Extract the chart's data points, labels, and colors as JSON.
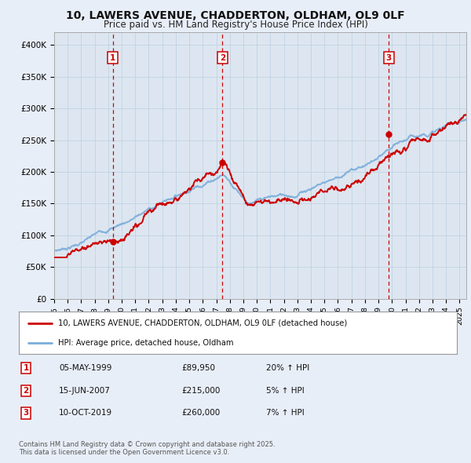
{
  "title": "10, LAWERS AVENUE, CHADDERTON, OLDHAM, OL9 0LF",
  "subtitle": "Price paid vs. HM Land Registry's House Price Index (HPI)",
  "title_fontsize": 10,
  "subtitle_fontsize": 8.5,
  "background_color": "#e8eef8",
  "plot_bg_color": "#dde6f0",
  "ylim": [
    0,
    420000
  ],
  "yticks": [
    0,
    50000,
    100000,
    150000,
    200000,
    250000,
    300000,
    350000,
    400000
  ],
  "ytick_labels": [
    "£0",
    "£50K",
    "£100K",
    "£150K",
    "£200K",
    "£250K",
    "£300K",
    "£350K",
    "£400K"
  ],
  "sales": [
    {
      "date_num": 1999.35,
      "price": 89950,
      "label": "1"
    },
    {
      "date_num": 2007.46,
      "price": 215000,
      "label": "2"
    },
    {
      "date_num": 2019.77,
      "price": 260000,
      "label": "3"
    }
  ],
  "sale_line_color": "#cc0000",
  "hpi_line_color": "#7aaddb",
  "grid_color": "#c5d5e5",
  "legend_entries": [
    "10, LAWERS AVENUE, CHADDERTON, OLDHAM, OL9 0LF (detached house)",
    "HPI: Average price, detached house, Oldham"
  ],
  "table_rows": [
    {
      "num": "1",
      "date": "05-MAY-1999",
      "price": "£89,950",
      "hpi": "20% ↑ HPI"
    },
    {
      "num": "2",
      "date": "15-JUN-2007",
      "price": "£215,000",
      "hpi": "5% ↑ HPI"
    },
    {
      "num": "3",
      "date": "10-OCT-2019",
      "price": "£260,000",
      "hpi": "7% ↑ HPI"
    }
  ],
  "footer": "Contains HM Land Registry data © Crown copyright and database right 2025.\nThis data is licensed under the Open Government Licence v3.0.",
  "xmin": 1995,
  "xmax": 2025.5
}
